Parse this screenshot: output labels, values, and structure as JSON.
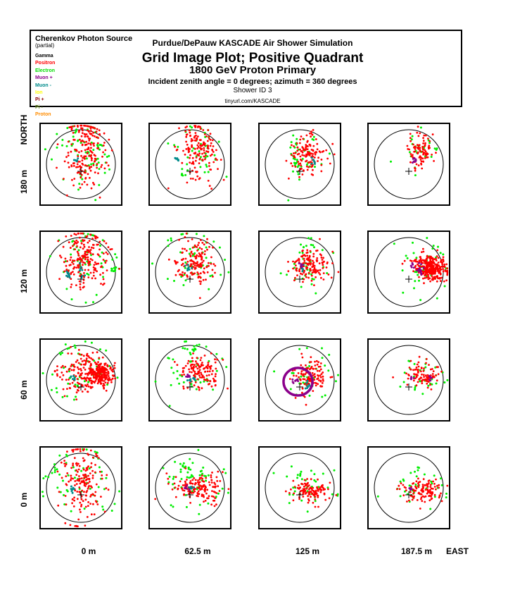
{
  "header": {
    "source_title": "Cherenkov Photon Source",
    "source_note": "(partial)",
    "simulation": "Purdue/DePauw KASCADE Air Shower Simulation",
    "main_title": "Grid Image Plot; Positive Quadrant",
    "primary": "1800 GeV Proton Primary",
    "angles": "Incident zenith angle =  0 degrees;  azimuth =  360 degrees",
    "shower_id": "Shower ID 3",
    "url": "tinyurl.com/KASCADE"
  },
  "legend": [
    {
      "label": "Gamma",
      "color": "#000000"
    },
    {
      "label": "Positron",
      "color": "#ff0000"
    },
    {
      "label": "Electron",
      "color": "#00dd00"
    },
    {
      "label": "Muon +",
      "color": "#8b008b"
    },
    {
      "label": "Muon -",
      "color": "#008b8b"
    },
    {
      "label": "Ion",
      "color": "#ffff00"
    },
    {
      "label": "Pi +",
      "color": "#8b0000"
    },
    {
      "label": "Pi -",
      "color": "#6b8e23"
    },
    {
      "label": "Proton",
      "color": "#ff8c00"
    }
  ],
  "axes": {
    "north_label": "NORTH",
    "east_label": "EAST",
    "row_labels": [
      "180 m",
      "120 m",
      "60 m",
      "0 m"
    ],
    "col_labels": [
      "0 m",
      "62.5 m",
      "125 m",
      "187.5 m"
    ]
  },
  "chart_data": {
    "type": "scatter",
    "title": "Grid Image Plot; Positive Quadrant",
    "xlabel": "EAST",
    "ylabel": "NORTH",
    "grid_x": [
      "0 m",
      "62.5 m",
      "125 m",
      "187.5 m"
    ],
    "grid_y": [
      "180 m",
      "120 m",
      "60 m",
      "0 m"
    ],
    "series": [
      {
        "name": "Positron",
        "color": "#ff0000"
      },
      {
        "name": "Electron",
        "color": "#00dd00"
      },
      {
        "name": "Muon +",
        "color": "#8b008b"
      },
      {
        "name": "Muon -",
        "color": "#008b8b"
      }
    ],
    "panels": [
      {
        "row": 0,
        "col": 0,
        "red": [
          [
            0.12,
            0.38,
            0.3,
            0.55,
            200
          ]
        ],
        "green": [
          [
            0.1,
            0.4,
            0.35,
            0.6,
            45
          ],
          [
            0.05,
            0.5,
            0.6,
            0.45,
            20
          ],
          [
            0.5,
            0.55,
            0.05,
            0.05,
            6
          ]
        ],
        "cyan": [
          [
            -0.12,
            0.12,
            0.04,
            0.03,
            6
          ]
        ],
        "purple": [],
        "ring": null
      },
      {
        "row": 0,
        "col": 1,
        "red": [
          [
            0.22,
            0.38,
            0.26,
            0.4,
            160
          ]
        ],
        "green": [
          [
            0.2,
            0.4,
            0.38,
            0.48,
            40
          ],
          [
            -0.2,
            -0.3,
            0.04,
            0.05,
            4
          ]
        ],
        "cyan": [
          [
            -0.4,
            0.1,
            0.03,
            0.07,
            8
          ]
        ],
        "purple": [],
        "ring": null
      },
      {
        "row": 0,
        "col": 2,
        "red": [
          [
            0.22,
            0.3,
            0.25,
            0.28,
            130
          ]
        ],
        "green": [
          [
            0.15,
            0.35,
            0.32,
            0.4,
            35
          ],
          [
            -0.1,
            0.1,
            0.05,
            0.25,
            10
          ]
        ],
        "cyan": [
          [
            0.4,
            0.05,
            0.03,
            0.05,
            6
          ]
        ],
        "purple": [],
        "ring": null
      },
      {
        "row": 0,
        "col": 3,
        "red": [
          [
            0.35,
            0.4,
            0.18,
            0.25,
            90
          ]
        ],
        "green": [
          [
            0.3,
            0.38,
            0.3,
            0.3,
            25
          ],
          [
            0.78,
            0.45,
            0.03,
            0.05,
            3
          ]
        ],
        "cyan": [],
        "purple": [
          [
            0.15,
            0.15,
            0.04,
            0.05,
            8
          ]
        ],
        "ring": null
      },
      {
        "row": 1,
        "col": 0,
        "red": [
          [
            0.1,
            0.35,
            0.32,
            0.45,
            200
          ]
        ],
        "green": [
          [
            0.1,
            0.35,
            0.45,
            0.55,
            55
          ],
          [
            0.95,
            0.08,
            0.08,
            0.04,
            10
          ]
        ],
        "cyan": [
          [
            -0.35,
            -0.05,
            0.04,
            0.08,
            10
          ],
          [
            0.02,
            0.05,
            0.05,
            0.1,
            8
          ]
        ],
        "purple": [],
        "ring": null
      },
      {
        "row": 1,
        "col": 2,
        "red": [
          [
            0.3,
            0.2,
            0.28,
            0.22,
            140
          ]
        ],
        "green": [
          [
            0.2,
            0.25,
            0.4,
            0.4,
            35
          ],
          [
            0.2,
            0.75,
            0.2,
            0.08,
            6
          ]
        ],
        "cyan": [
          [
            0.08,
            0.1,
            0.04,
            0.05,
            6
          ]
        ],
        "purple": [
          [
            0.05,
            0.22,
            0.03,
            0.04,
            5
          ]
        ],
        "ring": null
      },
      {
        "row": 1,
        "col": 1,
        "red": [
          [
            0.15,
            0.3,
            0.3,
            0.35,
            150
          ]
        ],
        "green": [
          [
            0.1,
            0.35,
            0.48,
            0.52,
            50
          ]
        ],
        "cyan": [
          [
            -0.02,
            0.12,
            0.05,
            0.05,
            8
          ]
        ],
        "purple": [],
        "ring": null
      },
      {
        "row": 1,
        "col": 3,
        "red": [
          [
            0.7,
            0.1,
            0.18,
            0.18,
            260
          ],
          [
            0.35,
            0.3,
            0.2,
            0.15,
            40
          ]
        ],
        "green": [
          [
            0.4,
            0.2,
            0.4,
            0.4,
            40
          ]
        ],
        "cyan": [],
        "purple": [
          [
            0.35,
            0.05,
            0.05,
            0.1,
            12
          ],
          [
            0.12,
            0.18,
            0.03,
            0.05,
            6
          ]
        ],
        "ring": null
      },
      {
        "row": 2,
        "col": 0,
        "red": [
          [
            0.55,
            0.15,
            0.18,
            0.18,
            200
          ],
          [
            0.1,
            0.2,
            0.35,
            0.3,
            150
          ]
        ],
        "green": [
          [
            0.05,
            0.25,
            0.5,
            0.5,
            55
          ]
        ],
        "cyan": [
          [
            -0.25,
            0.05,
            0.05,
            0.06,
            6
          ]
        ],
        "purple": [],
        "ring": null
      },
      {
        "row": 2,
        "col": 1,
        "red": [
          [
            0.3,
            0.2,
            0.3,
            0.22,
            130
          ]
        ],
        "green": [
          [
            0.2,
            0.3,
            0.5,
            0.45,
            45
          ],
          [
            0.0,
            0.88,
            0.12,
            0.05,
            8
          ]
        ],
        "cyan": [
          [
            0.12,
            0.0,
            0.1,
            0.05,
            10
          ]
        ],
        "purple": [
          [
            -0.08,
            0.12,
            0.04,
            0.05,
            6
          ]
        ],
        "ring": null
      },
      {
        "row": 2,
        "col": 2,
        "red": [
          [
            0.3,
            0.1,
            0.25,
            0.25,
            120
          ]
        ],
        "green": [
          [
            0.2,
            0.2,
            0.4,
            0.4,
            35
          ]
        ],
        "cyan": [
          [
            0.22,
            -0.15,
            0.05,
            0.05,
            8
          ]
        ],
        "purple": [
          [
            -0.1,
            -0.05,
            0.06,
            0.04,
            8
          ]
        ],
        "ring": [
          -0.05,
          -0.05,
          0.42,
          0.4
        ]
      },
      {
        "row": 2,
        "col": 3,
        "red": [
          [
            0.45,
            0.15,
            0.25,
            0.18,
            90
          ]
        ],
        "green": [
          [
            0.4,
            0.2,
            0.4,
            0.3,
            30
          ]
        ],
        "cyan": [],
        "purple": [
          [
            0.05,
            0.05,
            0.04,
            0.05,
            6
          ],
          [
            0.6,
            0.05,
            0.03,
            0.04,
            5
          ]
        ],
        "ring": null
      },
      {
        "row": 3,
        "col": 0,
        "red": [
          [
            0.05,
            0.1,
            0.3,
            0.55,
            180
          ]
        ],
        "green": [
          [
            0.05,
            0.2,
            0.55,
            0.55,
            55
          ],
          [
            -0.75,
            0.55,
            0.04,
            0.08,
            5
          ]
        ],
        "cyan": [
          [
            -0.25,
            -0.05,
            0.04,
            0.06,
            8
          ]
        ],
        "purple": [],
        "ring": null
      },
      {
        "row": 3,
        "col": 1,
        "red": [
          [
            0.25,
            0.0,
            0.38,
            0.2,
            150
          ]
        ],
        "green": [
          [
            0.1,
            0.2,
            0.45,
            0.45,
            50
          ],
          [
            -0.1,
            0.65,
            0.1,
            0.1,
            10
          ]
        ],
        "cyan": [
          [
            0.05,
            0.03,
            0.05,
            0.04,
            6
          ]
        ],
        "purple": [
          [
            -0.1,
            0.0,
            0.03,
            0.04,
            5
          ]
        ],
        "ring": null
      },
      {
        "row": 3,
        "col": 2,
        "red": [
          [
            0.3,
            -0.1,
            0.3,
            0.15,
            120
          ]
        ],
        "green": [
          [
            0.2,
            0.0,
            0.45,
            0.3,
            35
          ],
          [
            0.0,
            0.45,
            0.05,
            0.08,
            5
          ]
        ],
        "cyan": [],
        "purple": [],
        "ring": null
      },
      {
        "row": 3,
        "col": 3,
        "red": [
          [
            0.4,
            -0.1,
            0.3,
            0.15,
            120
          ]
        ],
        "green": [
          [
            0.3,
            0.0,
            0.45,
            0.25,
            35
          ],
          [
            0.3,
            0.55,
            0.05,
            0.05,
            4
          ]
        ],
        "cyan": [],
        "purple": [
          [
            0.05,
            0.0,
            0.03,
            0.04,
            5
          ]
        ],
        "ring": null
      }
    ]
  }
}
